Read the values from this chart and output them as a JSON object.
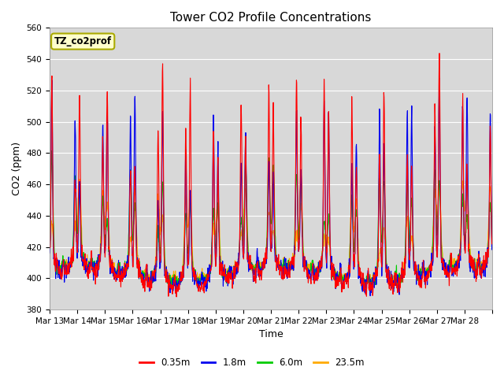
{
  "title": "Tower CO2 Profile Concentrations",
  "xlabel": "Time",
  "ylabel": "CO2 (ppm)",
  "ylim": [
    380,
    560
  ],
  "yticks": [
    380,
    400,
    420,
    440,
    460,
    480,
    500,
    520,
    540,
    560
  ],
  "xtick_labels": [
    "Mar 13",
    "Mar 14",
    "Mar 15",
    "Mar 16",
    "Mar 17",
    "Mar 18",
    "Mar 19",
    "Mar 20",
    "Mar 21",
    "Mar 22",
    "Mar 23",
    "Mar 24",
    "Mar 25",
    "Mar 26",
    "Mar 27",
    "Mar 28"
  ],
  "series_labels": [
    "0.35m",
    "1.8m",
    "6.0m",
    "23.5m"
  ],
  "series_colors": [
    "#ff0000",
    "#0000ee",
    "#00cc00",
    "#ffaa00"
  ],
  "legend_label": "TZ_co2prof",
  "legend_bg": "#ffffcc",
  "legend_border": "#aaaa00",
  "plot_bg": "#d8d8d8",
  "fig_bg": "#ffffff",
  "n_days": 16,
  "pts_per_day": 96,
  "seed": 7,
  "title_fontsize": 11,
  "axis_fontsize": 9,
  "tick_fontsize": 7.5,
  "linewidth": 0.8
}
